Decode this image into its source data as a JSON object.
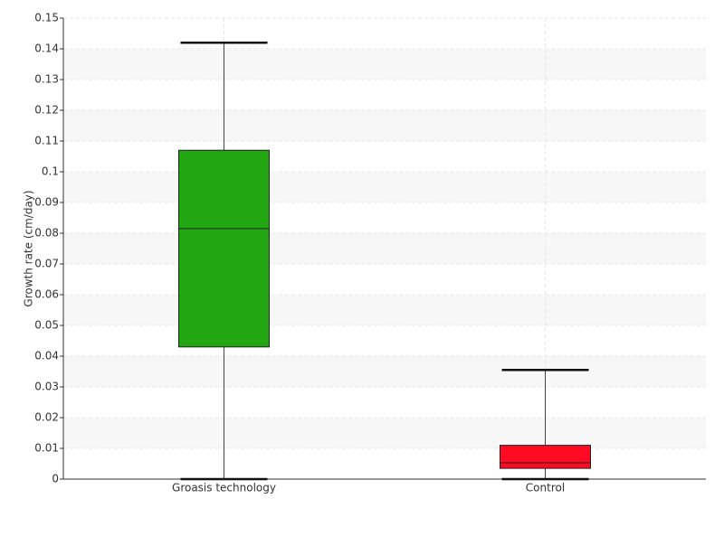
{
  "chart_data": {
    "type": "box",
    "y_label": "Growth rate (cm/day)",
    "categories": [
      "Groasis technology",
      "Control"
    ],
    "boxes": [
      {
        "min": 0,
        "q1": 0.043,
        "median": 0.0815,
        "q3": 0.107,
        "max": 0.142,
        "color": "#22a612"
      },
      {
        "min": 0,
        "q1": 0.0035,
        "median": 0.0053,
        "q3": 0.011,
        "max": 0.0355,
        "color": "#ff0a22"
      }
    ],
    "ylim": [
      0,
      0.15
    ],
    "yticks": [
      0,
      0.01,
      0.02,
      0.03,
      0.04,
      0.05,
      0.06,
      0.07,
      0.08,
      0.09,
      0.1,
      0.11,
      0.12,
      0.13,
      0.14,
      0.15
    ],
    "grid": true
  }
}
